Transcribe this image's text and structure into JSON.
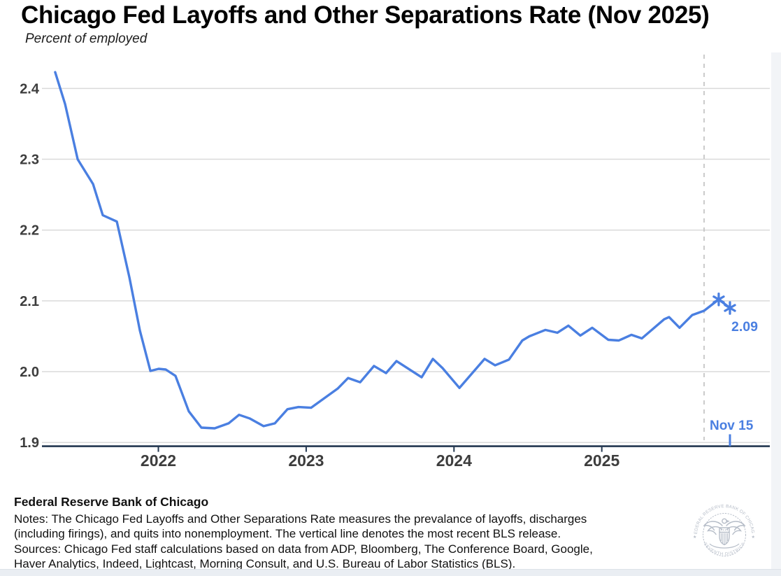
{
  "header": {
    "title": "Chicago Fed Layoffs and Other Separations Rate (Nov 2025)",
    "subtitle": "Percent of employed"
  },
  "chart_data": {
    "type": "line",
    "title": "Chicago Fed Layoffs and Other Separations Rate (Nov 2025)",
    "ylabel": "Percent of employed",
    "grid": true,
    "x_range": [
      2021.25,
      2025.97
    ],
    "y_range": [
      1.9,
      2.45
    ],
    "x_ticks": [
      2022,
      2023,
      2024,
      2025
    ],
    "x_tick_labels": [
      "2022",
      "2023",
      "2024",
      "2025"
    ],
    "y_ticks": [
      1.9,
      2.0,
      2.1,
      2.2,
      2.3,
      2.4
    ],
    "y_tick_labels": [
      "1.9",
      "2.0",
      "2.1",
      "2.2",
      "2.3",
      "2.4"
    ],
    "series": [
      {
        "name": "Layoffs and Other Separations Rate",
        "x": [
          2021.302,
          2021.369,
          2021.454,
          2021.558,
          2021.624,
          2021.719,
          2021.804,
          2021.875,
          2021.946,
          2022.002,
          2022.05,
          2022.116,
          2022.206,
          2022.291,
          2022.381,
          2022.475,
          2022.546,
          2022.617,
          2022.712,
          2022.788,
          2022.873,
          2022.948,
          2023.033,
          2023.119,
          2023.213,
          2023.284,
          2023.365,
          2023.459,
          2023.54,
          2023.611,
          2023.781,
          2023.857,
          2023.923,
          2024.037,
          2024.207,
          2024.278,
          2024.372,
          2024.462,
          2024.51,
          2024.618,
          2024.699,
          2024.774,
          2024.855,
          2024.935,
          2025.044,
          2025.115,
          2025.2,
          2025.271,
          2025.422,
          2025.455,
          2025.526,
          2025.612,
          2025.692,
          2025.791,
          2025.867
        ],
        "values": [
          2.423,
          2.378,
          2.3,
          2.265,
          2.221,
          2.212,
          2.133,
          2.058,
          2.001,
          2.004,
          2.003,
          1.994,
          1.944,
          1.921,
          1.92,
          1.927,
          1.939,
          1.934,
          1.923,
          1.927,
          1.947,
          1.95,
          1.949,
          1.962,
          1.976,
          1.991,
          1.985,
          2.008,
          1.998,
          2.015,
          1.992,
          2.018,
          2.005,
          1.977,
          2.018,
          2.009,
          2.017,
          2.044,
          2.05,
          2.059,
          2.055,
          2.065,
          2.051,
          2.062,
          2.045,
          2.044,
          2.052,
          2.047,
          2.074,
          2.077,
          2.062,
          2.08,
          2.086,
          2.102,
          2.09
        ],
        "marker_last_n": 2
      }
    ],
    "annotations": {
      "last_value_label": "2.09",
      "release_line": {
        "x": 2025.692,
        "style": "dashed",
        "meaning": "most recent BLS release"
      },
      "date_tick": {
        "x": 2025.867,
        "label": "Nov 15"
      }
    },
    "legend_position": "none"
  },
  "footer": {
    "org": "Federal Reserve Bank of Chicago",
    "lines": [
      "Notes: The Chicago Fed Layoffs and Other Separations Rate measures the prevalance of layoffs, discharges",
      "(including firings), and quits into nonemployment. The vertical line denotes the most recent BLS release.",
      "Sources: Chicago Fed staff calculations based on data from ADP, Bloomberg, The Conference Board, Google,",
      "Haver Analytics, Indeed, Lightcast, Morning Consult, and U.S. Bureau of Labor Statistics (BLS)."
    ]
  },
  "seal": {
    "top_text": "FEDERAL RESERVE BANK OF CHICAGO",
    "bottom_text": "SEVENTH DISTRICT"
  },
  "colors": {
    "line": "#4a7fe1",
    "accent_text": "#4a7fe1",
    "grid": "#dadada",
    "dashed_line": "#c6c6c6",
    "axis": "#233750",
    "tick_label": "#3d3d3d",
    "seal": "#b6bdc8",
    "bottom_bar": "#eaeef3"
  }
}
